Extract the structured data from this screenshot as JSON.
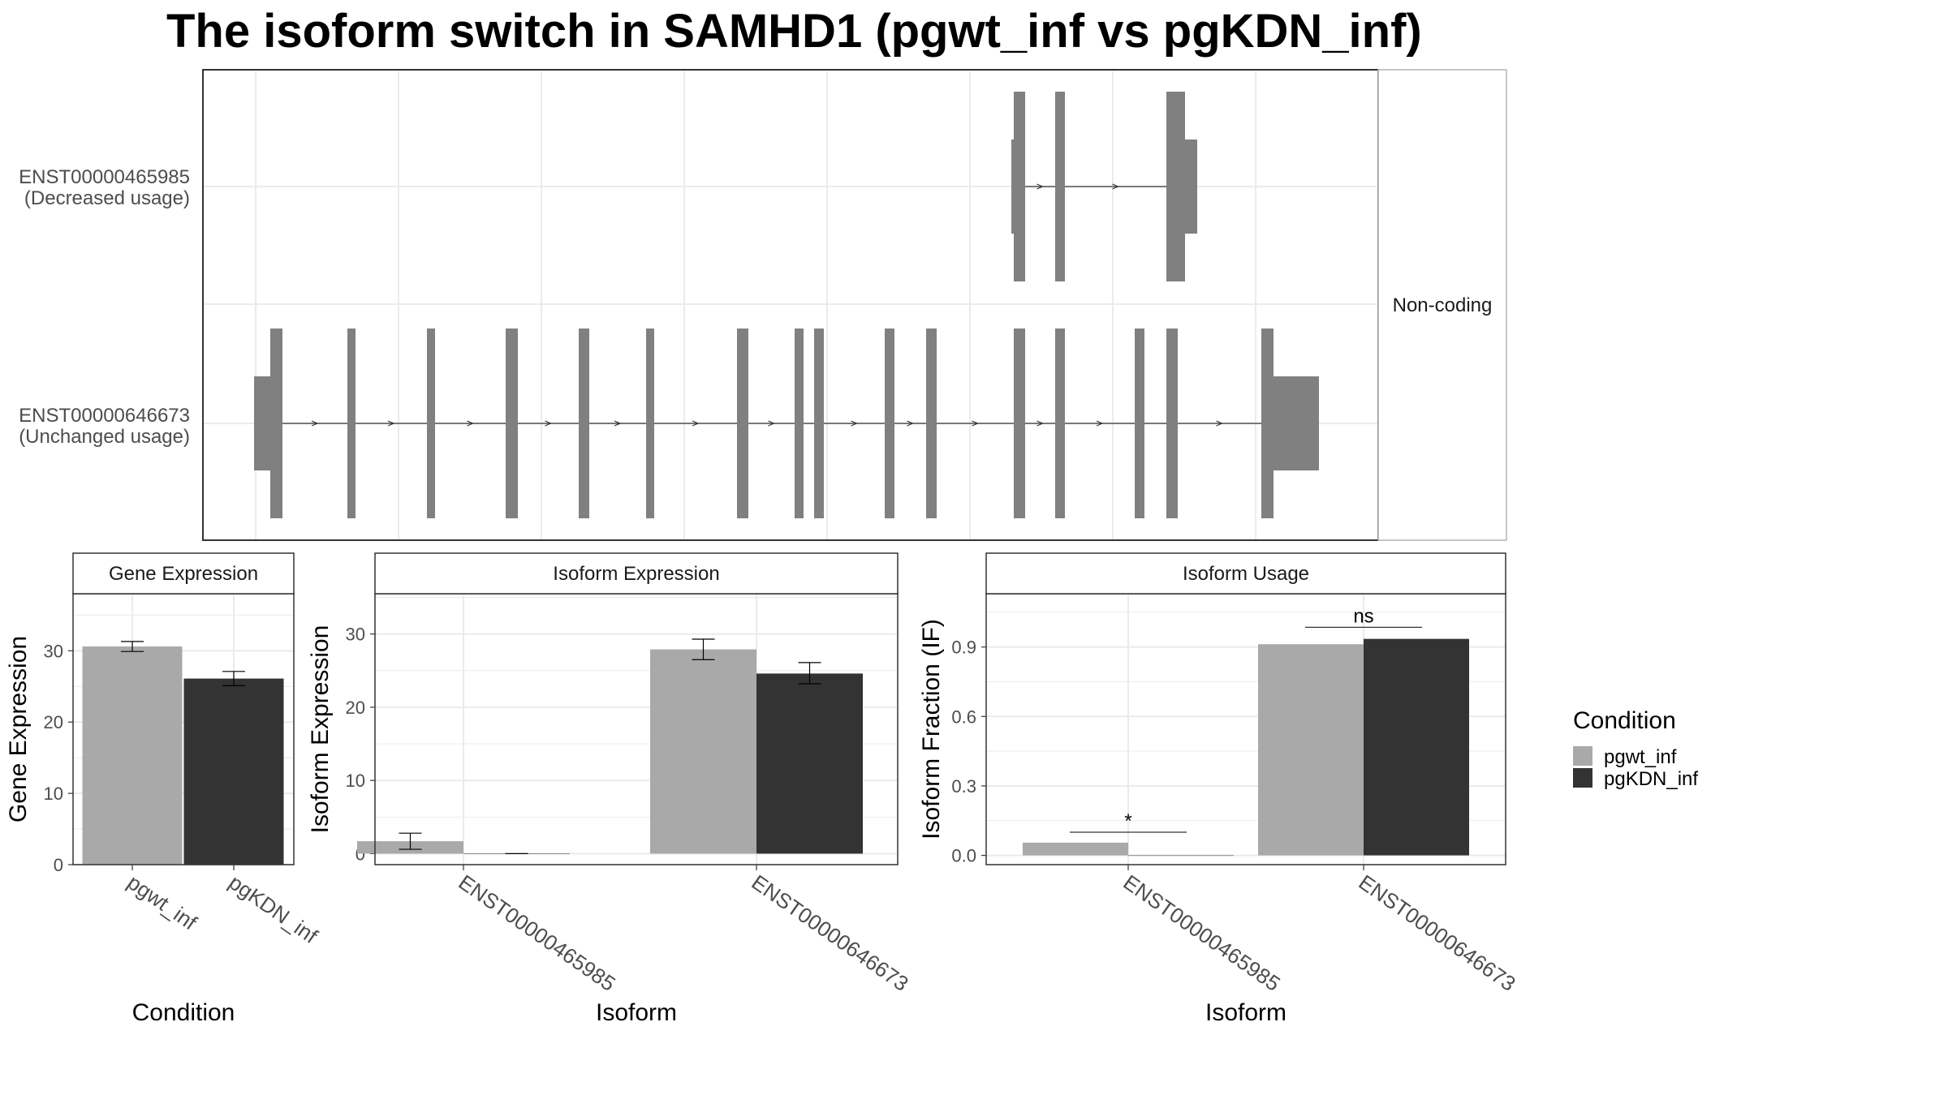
{
  "title": "The isoform switch in SAMHD1 (pgwt_inf vs pgKDN_inf)",
  "colors": {
    "pgwt_inf": "#a9a9a9",
    "pgKDN_inf": "#333333",
    "exon": "#808080",
    "grid": "#ebebeb",
    "strip_border": "#b3b3b3"
  },
  "structure": {
    "facet_label": "Non-coding",
    "transcripts": [
      {
        "id": "ENST00000465985",
        "usage": "(Decreased usage)"
      },
      {
        "id": "ENST00000646673",
        "usage": "(Unchanged usage)"
      }
    ]
  },
  "legend": {
    "title": "Condition",
    "items": [
      "pgwt_inf",
      "pgKDN_inf"
    ]
  },
  "chart_data": [
    {
      "type": "bar",
      "title": "Gene Expression",
      "xlabel": "Condition",
      "ylabel": "Gene Expression",
      "categories": [
        "pgwt_inf",
        "pgKDN_inf"
      ],
      "values": [
        30.6,
        26.1
      ],
      "errors": [
        [
          29.9,
          31.3
        ],
        [
          25.1,
          27.1
        ]
      ],
      "ylim": [
        0,
        38
      ],
      "yticks": [
        0,
        10,
        20,
        30
      ]
    },
    {
      "type": "bar",
      "title": "Isoform Expression",
      "xlabel": "Isoform",
      "ylabel": "Isoform Expression",
      "categories": [
        "ENST00000465985",
        "ENST00000646673"
      ],
      "series": [
        {
          "name": "pgwt_inf",
          "values": [
            1.7,
            27.9
          ],
          "errors": [
            [
              0.6,
              2.8
            ],
            [
              26.5,
              29.3
            ]
          ]
        },
        {
          "name": "pgKDN_inf",
          "values": [
            0.0,
            24.6
          ],
          "errors": [
            [
              0.0,
              0.0
            ],
            [
              23.2,
              26.1
            ]
          ]
        }
      ],
      "ylim": [
        -1.5,
        35.5
      ],
      "yticks": [
        0,
        10,
        20,
        30
      ]
    },
    {
      "type": "bar",
      "title": "Isoform Usage",
      "xlabel": "Isoform",
      "ylabel": "Isoform Fraction (IF)",
      "categories": [
        "ENST00000465985",
        "ENST00000646673"
      ],
      "series": [
        {
          "name": "pgwt_inf",
          "values": [
            0.055,
            0.912
          ]
        },
        {
          "name": "pgKDN_inf",
          "values": [
            0.0,
            0.935
          ]
        }
      ],
      "significance": [
        {
          "label": "*",
          "y": 0.1
        },
        {
          "label": "ns",
          "y": 0.985
        }
      ],
      "ylim": [
        -0.04,
        1.13
      ],
      "yticks": [
        "0.0",
        "0.3",
        "0.6",
        "0.9"
      ]
    }
  ]
}
